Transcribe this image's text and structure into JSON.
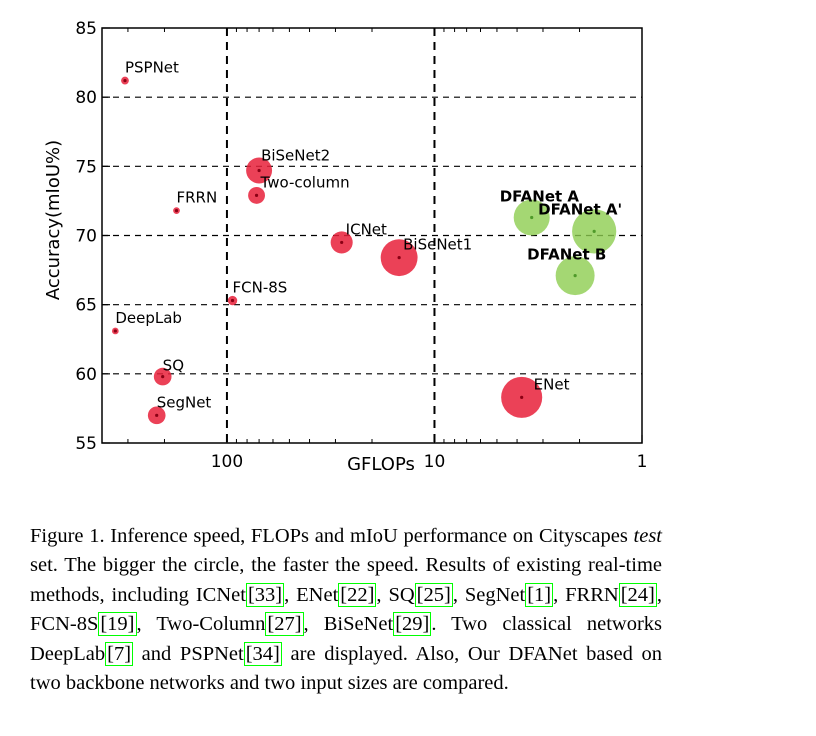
{
  "chart_data": {
    "type": "scatter",
    "title": "",
    "xlabel": "GFLOPs",
    "ylabel": "Accuracy(mIoU%)",
    "x_scale": "log",
    "x_reversed": true,
    "xlim": [
      400,
      1
    ],
    "ylim": [
      55,
      85
    ],
    "x_ticks": [
      100,
      10,
      1
    ],
    "x_tick_labels": [
      "100",
      "10",
      "1"
    ],
    "y_ticks": [
      55,
      60,
      65,
      70,
      75,
      80,
      85
    ],
    "y_tick_labels": [
      "55",
      "60",
      "65",
      "70",
      "75",
      "80",
      "85"
    ],
    "grid": "dashed",
    "size_meaning": "bigger circle = faster speed",
    "points": [
      {
        "label": "PSPNet",
        "gflops": 310,
        "miou": 81.2,
        "speed": 0.8,
        "color": "#e8203a",
        "bold": false
      },
      {
        "label": "FRRN",
        "gflops": 175,
        "miou": 71.8,
        "speed": 0.3,
        "color": "#e8203a",
        "bold": false
      },
      {
        "label": "FCN-8S",
        "gflops": 94,
        "miou": 65.3,
        "speed": 2.0,
        "color": "#e8203a",
        "bold": false
      },
      {
        "label": "DeepLab",
        "gflops": 345,
        "miou": 63.1,
        "speed": 0.3,
        "color": "#e8203a",
        "bold": false
      },
      {
        "label": "SQ",
        "gflops": 204,
        "miou": 59.8,
        "speed": 16.7,
        "color": "#e8203a",
        "bold": false
      },
      {
        "label": "SegNet",
        "gflops": 218,
        "miou": 57.0,
        "speed": 16.7,
        "color": "#e8203a",
        "bold": false
      },
      {
        "label": "BiSeNet2",
        "gflops": 70,
        "miou": 74.7,
        "speed": 45.7,
        "color": "#e8203a",
        "bold": false
      },
      {
        "label": "Two-column",
        "gflops": 72,
        "miou": 72.9,
        "speed": 14.7,
        "color": "#e8203a",
        "bold": false
      },
      {
        "label": "ICNet",
        "gflops": 28,
        "miou": 69.5,
        "speed": 30.3,
        "color": "#e8203a",
        "bold": false
      },
      {
        "label": "BiSeNet1",
        "gflops": 14.8,
        "miou": 68.4,
        "speed": 105.8,
        "color": "#e8203a",
        "bold": false
      },
      {
        "label": "ENet",
        "gflops": 3.8,
        "miou": 58.3,
        "speed": 135.4,
        "color": "#e8203a",
        "bold": false
      },
      {
        "label": "DFANet A",
        "gflops": 3.4,
        "miou": 71.3,
        "speed": 100.0,
        "color": "#8dcd50",
        "bold": true
      },
      {
        "label": "DFANet A'",
        "gflops": 1.7,
        "miou": 70.3,
        "speed": 160.0,
        "color": "#8dcd50",
        "bold": true
      },
      {
        "label": "DFANet B",
        "gflops": 2.1,
        "miou": 67.1,
        "speed": 120.0,
        "color": "#8dcd50",
        "bold": true
      }
    ]
  },
  "caption": {
    "figure_label": "Figure 1.",
    "text_1": " Inference speed, FLOPs and mIoU performance on Cityscapes ",
    "text_italic": "test",
    "text_2": " set.  The bigger the circle, the faster the speed. Results of existing real-time methods, including ICNet",
    "ref_icnet": "[33]",
    "text_3": ", ENet",
    "ref_enet": "[22]",
    "text_4": ", SQ",
    "ref_sq": "[25]",
    "text_5": ", SegNet",
    "ref_segnet": "[1]",
    "text_6": ", FRRN",
    "ref_frrn": "[24]",
    "text_7": ", FCN-8S",
    "ref_fcn": "[19]",
    "text_8": ", Two-Column",
    "ref_twocol": "[27]",
    "text_9": ", BiSeNet",
    "ref_bisenet": "[29]",
    "text_10": ".  Two classical networks DeepLab",
    "ref_deeplab": "[7]",
    "text_11": " and PSPNet",
    "ref_pspnet": "[34]",
    "text_12": " are displayed.  Also, Our DFANet based on two backbone networks and two input sizes are compared."
  }
}
